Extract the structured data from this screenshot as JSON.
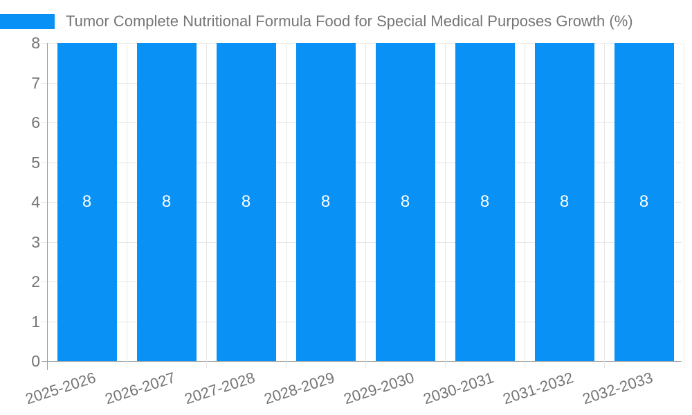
{
  "chart_data": {
    "type": "bar",
    "title": "Tumor Complete Nutritional Formula Food for Special Medical Purposes Growth (%)",
    "categories": [
      "2025-2026",
      "2026-2027",
      "2027-2028",
      "2028-2029",
      "2029-2030",
      "2030-2031",
      "2031-2032",
      "2032-2033"
    ],
    "values": [
      8,
      8,
      8,
      8,
      8,
      8,
      8,
      8
    ],
    "bar_data_labels": [
      "8",
      "8",
      "8",
      "8",
      "8",
      "8",
      "8",
      "8"
    ],
    "xlabel": "",
    "ylabel": "",
    "y_ticks": [
      0,
      1,
      2,
      3,
      4,
      5,
      6,
      7,
      8
    ],
    "ylim": [
      0,
      8
    ],
    "grid": true,
    "legend_position": "top-left",
    "colors": {
      "series": "#0991f5",
      "title_text": "#757575",
      "axis_text": "#757575",
      "gridline": "#e6e6e6",
      "axis_line": "#9e9e9e",
      "bar_label_text": "#ffffff"
    }
  }
}
